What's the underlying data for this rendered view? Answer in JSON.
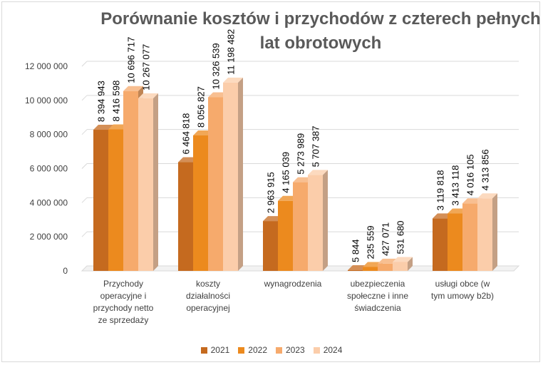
{
  "chart_data": {
    "type": "bar",
    "title_lines": [
      "Porównanie kosztów i przychodów z czterech pełnych",
      "lat obrotowych"
    ],
    "categories": [
      [
        "Przychody",
        "operacyjne i",
        "przychody netto",
        "ze sprzedaży"
      ],
      [
        "koszty",
        "działalności",
        "operacyjnej"
      ],
      [
        "wynagrodzenia"
      ],
      [
        "ubezpieczenia",
        "społeczne i inne",
        "świadczenia"
      ],
      [
        "usługi obce (w",
        "tym umowy b2b)"
      ]
    ],
    "series": [
      {
        "name": "2021",
        "color": "#c56a1f",
        "values": [
          8394943,
          6464818,
          2963915,
          5844,
          3119818
        ],
        "labels": [
          "8 394 943",
          "6 464 818",
          "2 963 915",
          "5 844",
          "3 119 818"
        ]
      },
      {
        "name": "2022",
        "color": "#ec8a1e",
        "values": [
          8416598,
          8056827,
          4165039,
          235559,
          3413118
        ],
        "labels": [
          "8 416 598",
          "8 056 827",
          "4 165 039",
          "235 559",
          "3 413 118"
        ]
      },
      {
        "name": "2023",
        "color": "#f6aa6c",
        "values": [
          10696717,
          10326539,
          5273989,
          427071,
          4016105
        ],
        "labels": [
          "10 696 717",
          "10 326 539",
          "5 273 989",
          "427 071",
          "4 016 105"
        ]
      },
      {
        "name": "2024",
        "color": "#fbcdaa",
        "values": [
          10267077,
          11198482,
          5707387,
          531680,
          4313856
        ],
        "labels": [
          "10 267 077",
          "11 198 482",
          "5 707 387",
          "531 680",
          "4 313 856"
        ]
      }
    ],
    "y_ticks": [
      0,
      2000000,
      4000000,
      6000000,
      8000000,
      10000000,
      12000000
    ],
    "y_tick_labels": [
      "0",
      "2 000 000",
      "4 000 000",
      "6 000 000",
      "8 000 000",
      "10 000 000",
      "12 000 000"
    ],
    "ylim": [
      0,
      12000000
    ],
    "grid": true,
    "legend_position": "bottom"
  }
}
